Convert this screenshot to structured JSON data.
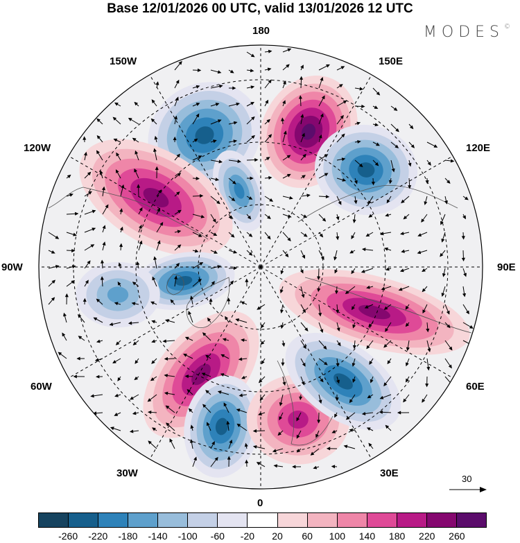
{
  "header": {
    "title": "Base 12/01/2026 00 UTC, valid 13/01/2026 12 UTC",
    "brand": "MODES",
    "brand_mark": "©"
  },
  "map": {
    "projection": "north-polar-stereographic",
    "longitude_labels": {
      "top": "180",
      "top_left": "150W",
      "top_right": "150E",
      "upper_left": "120W",
      "upper_right": "120E",
      "left": "90W",
      "right": "90E",
      "lower_left": "60W",
      "lower_right": "60E",
      "bottom_left": "30W",
      "bottom_right": "30E",
      "bottom": "0"
    },
    "vector_scale_label": "30",
    "anomaly_centers": [
      {
        "id": "gulf-of-alaska",
        "sign": "negative",
        "peak": -180
      },
      {
        "id": "bering",
        "sign": "negative",
        "peak": -140
      },
      {
        "id": "chukotka",
        "sign": "positive",
        "peak": 230
      },
      {
        "id": "east-siberia",
        "sign": "negative",
        "peak": -180
      },
      {
        "id": "western-canada",
        "sign": "positive",
        "peak": 200
      },
      {
        "id": "hudson-bay",
        "sign": "negative",
        "peak": -180
      },
      {
        "id": "labrador",
        "sign": "negative",
        "peak": -100
      },
      {
        "id": "greenland-atlantic",
        "sign": "positive",
        "peak": 180
      },
      {
        "id": "north-atlantic",
        "sign": "negative",
        "peak": -180
      },
      {
        "id": "europe",
        "sign": "positive",
        "peak": 140
      },
      {
        "id": "scandinavia-russia",
        "sign": "negative",
        "peak": -180
      },
      {
        "id": "central-asia",
        "sign": "positive",
        "peak": 180
      }
    ]
  },
  "colorbar": {
    "ticks": [
      "-260",
      "-220",
      "-180",
      "-140",
      "-100",
      "-60",
      "-20",
      "20",
      "60",
      "100",
      "140",
      "180",
      "220",
      "260"
    ],
    "colors": [
      "#16435f",
      "#165f8c",
      "#2e82b9",
      "#5ea0cc",
      "#98bddb",
      "#c4d0e6",
      "#e4e4f1",
      "#ffffff",
      "#f7d6d9",
      "#f3b4c0",
      "#ef86a8",
      "#df4a97",
      "#b81a86",
      "#85076f",
      "#5b0c6b"
    ]
  }
}
